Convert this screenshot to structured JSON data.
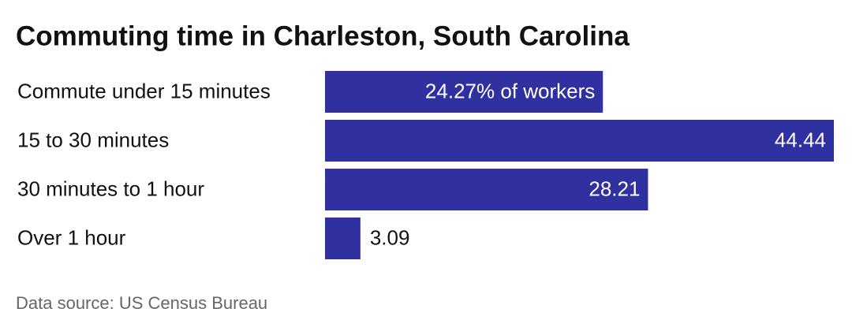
{
  "chart_data": {
    "type": "bar",
    "orientation": "horizontal",
    "title": "Commuting time in Charleston, South Carolina",
    "categories": [
      "Commute under 15 minutes",
      "15 to 30 minutes",
      "30 minutes to 1 hour",
      "Over 1 hour"
    ],
    "values": [
      24.27,
      44.44,
      28.21,
      3.09
    ],
    "value_labels": [
      "24.27% of workers",
      "44.44",
      "28.21",
      "3.09"
    ],
    "color": "#3130a0",
    "source": "Data source: US Census Bureau"
  }
}
